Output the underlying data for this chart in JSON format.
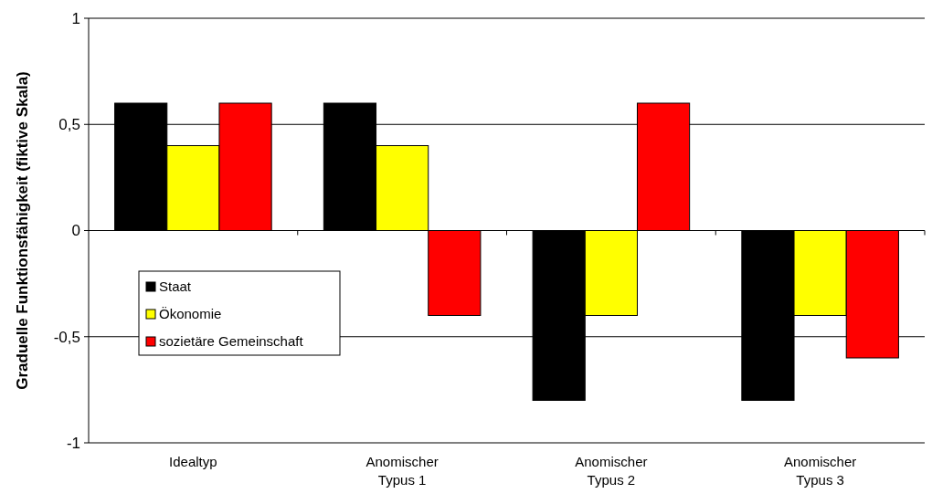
{
  "chart_data": {
    "type": "bar",
    "ylabel": "Graduelle Funktionsfähigkeit (fiktive Skala)",
    "categories": [
      "Idealtyp",
      "Anomischer Typus 1",
      "Anomischer Typus 2",
      "Anomischer Typus 3"
    ],
    "series": [
      {
        "name": "Staat",
        "color": "#000000",
        "values": [
          0.6,
          0.6,
          -0.8,
          -0.8
        ]
      },
      {
        "name": "Ökonomie",
        "color": "#ffff00",
        "values": [
          0.4,
          0.4,
          -0.4,
          -0.4
        ]
      },
      {
        "name": "sozietäre Gemeinschaft",
        "color": "#ff0000",
        "values": [
          0.6,
          -0.4,
          0.6,
          -0.6
        ]
      }
    ],
    "ylim": [
      -1,
      1
    ],
    "yticks": [
      {
        "value": -1,
        "label": "-1"
      },
      {
        "value": -0.5,
        "label": "-0,5"
      },
      {
        "value": 0,
        "label": "0"
      },
      {
        "value": 0.5,
        "label": "0,5"
      },
      {
        "value": 1,
        "label": "1"
      }
    ],
    "grid": "y",
    "legend": "left"
  }
}
